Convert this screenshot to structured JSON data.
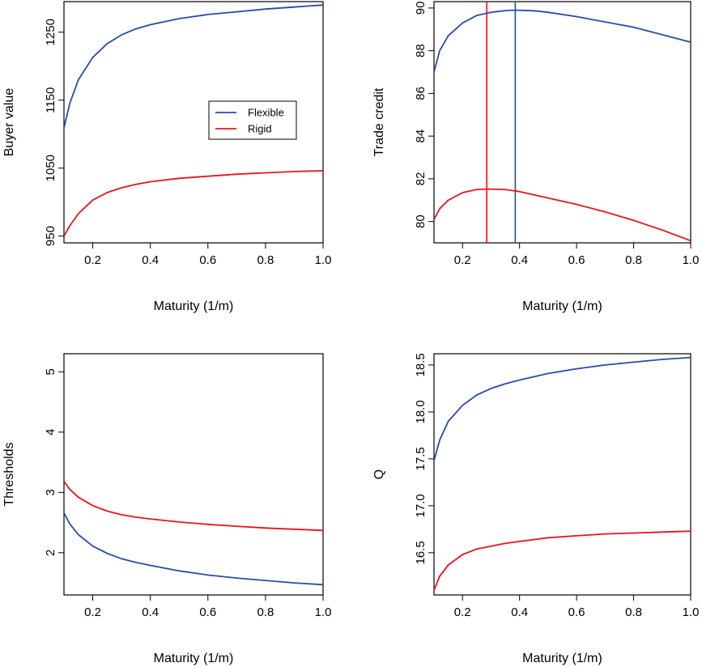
{
  "colors": {
    "flexible": "#2b4aa8",
    "rigid": "#e8141c"
  },
  "chart_data": [
    {
      "type": "line",
      "xlabel": "Maturity (1/m)",
      "ylabel": "Buyer value",
      "xlim": [
        0.1,
        1.0
      ],
      "ylim": [
        940,
        1295
      ],
      "xticks": [
        "0.2",
        "0.4",
        "0.6",
        "0.8",
        "1.0"
      ],
      "yticks": [
        "950",
        "1050",
        "1150",
        "1250"
      ],
      "legend": {
        "position": "center-right",
        "entries": [
          "Flexible",
          "Rigid"
        ]
      },
      "series": [
        {
          "name": "Flexible",
          "color_key": "flexible",
          "x": [
            0.1,
            0.12,
            0.15,
            0.2,
            0.25,
            0.3,
            0.35,
            0.4,
            0.5,
            0.6,
            0.7,
            0.8,
            0.9,
            1.0
          ],
          "y": [
            1109,
            1145,
            1180,
            1213,
            1233,
            1246,
            1255,
            1261,
            1270,
            1276,
            1280,
            1284,
            1287,
            1290
          ]
        },
        {
          "name": "Rigid",
          "color_key": "rigid",
          "x": [
            0.1,
            0.12,
            0.15,
            0.2,
            0.25,
            0.3,
            0.35,
            0.4,
            0.5,
            0.6,
            0.7,
            0.8,
            0.9,
            1.0
          ],
          "y": [
            950,
            965,
            983,
            1003,
            1014,
            1021,
            1026,
            1030,
            1035,
            1038,
            1041,
            1043,
            1045,
            1046
          ]
        }
      ]
    },
    {
      "type": "line",
      "xlabel": "Maturity (1/m)",
      "ylabel": "Trade credit",
      "xlim": [
        0.1,
        1.0
      ],
      "ylim": [
        79,
        90.3
      ],
      "xticks": [
        "0.2",
        "0.4",
        "0.6",
        "0.8",
        "1.0"
      ],
      "yticks": [
        "80",
        "82",
        "84",
        "86",
        "88",
        "90"
      ],
      "vlines": [
        {
          "x": 0.285,
          "color_key": "rigid"
        },
        {
          "x": 0.385,
          "color_key": "flexible"
        }
      ],
      "series": [
        {
          "name": "Flexible",
          "color_key": "flexible",
          "x": [
            0.1,
            0.12,
            0.15,
            0.2,
            0.25,
            0.3,
            0.35,
            0.385,
            0.45,
            0.5,
            0.6,
            0.7,
            0.8,
            0.9,
            1.0
          ],
          "y": [
            87.0,
            88.0,
            88.7,
            89.3,
            89.65,
            89.8,
            89.88,
            89.9,
            89.87,
            89.8,
            89.6,
            89.35,
            89.1,
            88.75,
            88.4
          ]
        },
        {
          "name": "Rigid",
          "color_key": "rigid",
          "x": [
            0.1,
            0.12,
            0.15,
            0.2,
            0.25,
            0.285,
            0.35,
            0.4,
            0.5,
            0.6,
            0.7,
            0.8,
            0.9,
            1.0
          ],
          "y": [
            80.1,
            80.6,
            81.0,
            81.35,
            81.5,
            81.52,
            81.5,
            81.4,
            81.1,
            80.8,
            80.45,
            80.05,
            79.6,
            79.1
          ]
        }
      ]
    },
    {
      "type": "line",
      "xlabel": "Maturity (1/m)",
      "ylabel": "Thresholds",
      "xlim": [
        0.1,
        1.0
      ],
      "ylim": [
        1.3,
        5.3
      ],
      "xticks": [
        "0.2",
        "0.4",
        "0.6",
        "0.8",
        "1.0"
      ],
      "yticks": [
        "2",
        "3",
        "4",
        "5"
      ],
      "series": [
        {
          "name": "Flexible",
          "color_key": "flexible",
          "x": [
            0.1,
            0.12,
            0.15,
            0.2,
            0.25,
            0.3,
            0.35,
            0.4,
            0.5,
            0.6,
            0.7,
            0.8,
            0.9,
            1.0
          ],
          "y": [
            2.66,
            2.48,
            2.3,
            2.11,
            1.99,
            1.9,
            1.84,
            1.79,
            1.7,
            1.63,
            1.58,
            1.54,
            1.5,
            1.47
          ]
        },
        {
          "name": "Rigid",
          "color_key": "rigid",
          "x": [
            0.1,
            0.12,
            0.15,
            0.2,
            0.25,
            0.3,
            0.35,
            0.4,
            0.5,
            0.6,
            0.7,
            0.8,
            0.9,
            1.0
          ],
          "y": [
            3.18,
            3.05,
            2.92,
            2.78,
            2.69,
            2.63,
            2.59,
            2.56,
            2.51,
            2.47,
            2.44,
            2.41,
            2.39,
            2.37
          ]
        }
      ]
    },
    {
      "type": "line",
      "xlabel": "Maturity (1/m)",
      "ylabel": "Q",
      "xlim": [
        0.1,
        1.0
      ],
      "ylim": [
        16.05,
        18.62
      ],
      "xticks": [
        "0.2",
        "0.4",
        "0.6",
        "0.8",
        "1.0"
      ],
      "yticks": [
        "16.5",
        "17.0",
        "17.5",
        "18.0",
        "18.5"
      ],
      "series": [
        {
          "name": "Flexible",
          "color_key": "flexible",
          "x": [
            0.1,
            0.12,
            0.15,
            0.2,
            0.25,
            0.3,
            0.35,
            0.4,
            0.5,
            0.6,
            0.7,
            0.8,
            0.9,
            1.0
          ],
          "y": [
            17.48,
            17.7,
            17.9,
            18.07,
            18.18,
            18.25,
            18.3,
            18.34,
            18.41,
            18.46,
            18.5,
            18.53,
            18.56,
            18.58
          ]
        },
        {
          "name": "Rigid",
          "color_key": "rigid",
          "x": [
            0.1,
            0.12,
            0.15,
            0.2,
            0.25,
            0.3,
            0.35,
            0.4,
            0.5,
            0.6,
            0.7,
            0.8,
            0.9,
            1.0
          ],
          "y": [
            16.1,
            16.25,
            16.37,
            16.48,
            16.54,
            16.57,
            16.6,
            16.62,
            16.66,
            16.68,
            16.7,
            16.71,
            16.72,
            16.73
          ]
        }
      ]
    }
  ]
}
